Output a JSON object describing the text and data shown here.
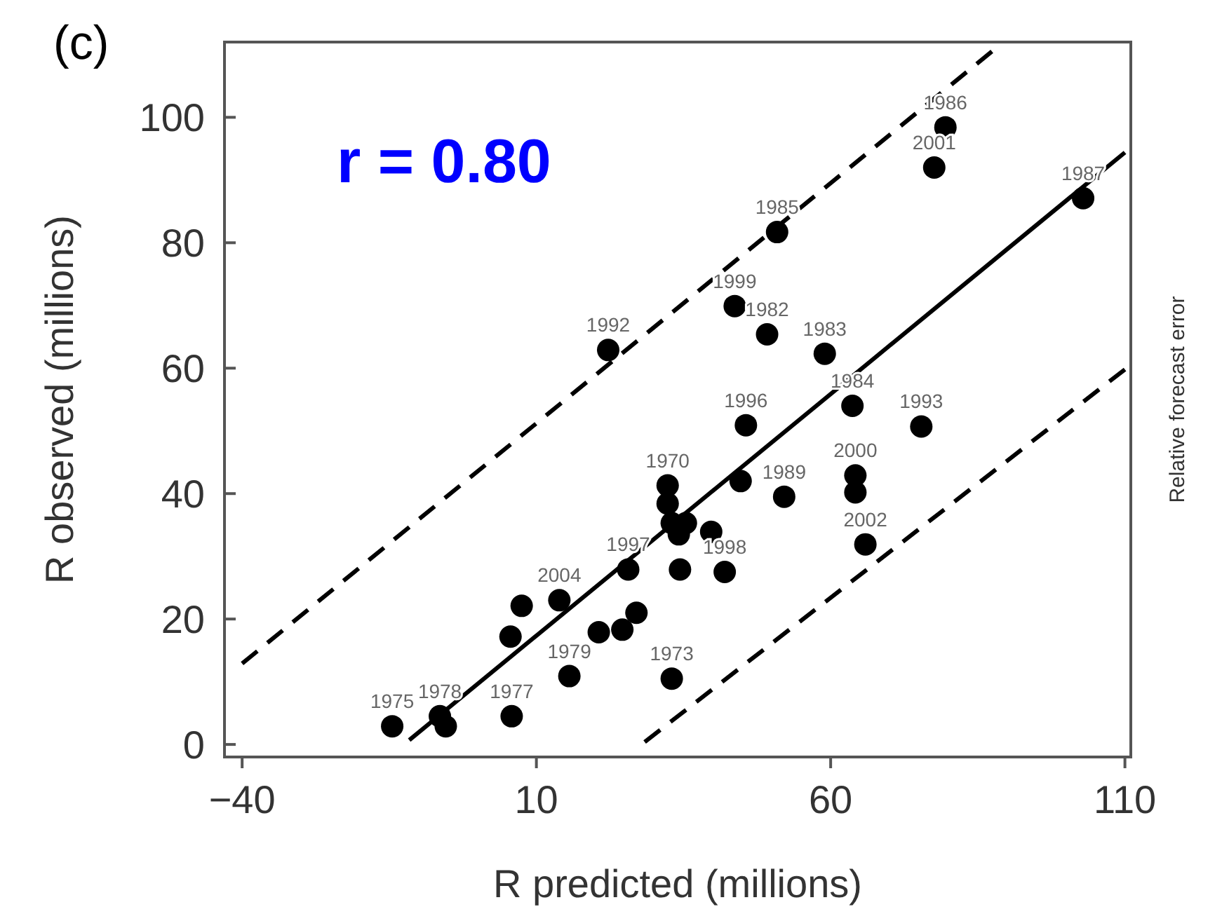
{
  "chart_data": {
    "type": "scatter",
    "title": "(c)",
    "xlabel": "R predicted (millions)",
    "ylabel": "R observed (millions)",
    "y2label": "Relative forecast error",
    "xlim": [
      -43,
      111
    ],
    "ylim": [
      -2,
      112
    ],
    "xticks": [
      -40,
      10,
      60,
      110
    ],
    "yticks": [
      0,
      20,
      40,
      60,
      80,
      100
    ],
    "grid": false,
    "marker": "circle",
    "series": [
      {
        "color": "#000000",
        "x": [
          -14.5,
          -6.4,
          -5.4,
          5.8,
          15.6,
          33.0,
          5.6,
          7.5,
          13.9,
          20.6,
          24.6,
          27.0,
          25.6,
          34.4,
          42.0,
          39.7,
          32.3,
          32.3,
          33.0,
          34.2,
          35.4,
          44.7,
          45.6,
          52.1,
          63.7,
          64.2,
          64.2,
          65.9,
          75.4,
          59.0,
          49.2,
          43.7,
          50.9,
          22.2,
          77.6,
          79.5,
          102.9
        ],
        "values": [
          2.9,
          4.5,
          2.9,
          4.5,
          10.9,
          10.5,
          17.2,
          22.1,
          23.0,
          17.9,
          18.3,
          21.0,
          27.9,
          27.9,
          27.5,
          33.9,
          41.3,
          38.4,
          35.3,
          33.5,
          35.3,
          42.0,
          50.9,
          39.5,
          54.0,
          42.9,
          40.2,
          31.9,
          50.7,
          62.3,
          65.4,
          69.9,
          81.7,
          62.9,
          92.0,
          98.4,
          87.1
        ]
      },
      {
        "type": "line",
        "color": "#000000",
        "line_style": "solid",
        "marker": "none",
        "x": [
          -11.6,
          110
        ],
        "values": [
          0.7,
          94.4
        ]
      },
      {
        "type": "line",
        "color": "#000000",
        "line_style": "dashed",
        "marker": "none",
        "x": [
          -40,
          87.4
        ],
        "values": [
          12.9,
          110.5
        ]
      },
      {
        "type": "line",
        "color": "#000000",
        "line_style": "dashed",
        "marker": "none",
        "x": [
          28.4,
          110
        ],
        "values": [
          0.4,
          59.8
        ]
      }
    ],
    "annotations": [
      "r = 0.80",
      {
        "text": "1975",
        "x": -14.5,
        "y": 2.9
      },
      {
        "text": "1978",
        "x": -6.4,
        "y": 4.5
      },
      {
        "text": "1977",
        "x": 5.8,
        "y": 4.5
      },
      {
        "text": "1979",
        "x": 15.6,
        "y": 10.9
      },
      {
        "text": "1973",
        "x": 33.0,
        "y": 10.5
      },
      {
        "text": "2004",
        "x": 13.9,
        "y": 23.0
      },
      {
        "text": "1997",
        "x": 25.6,
        "y": 27.9
      },
      {
        "text": "1998",
        "x": 42.0,
        "y": 27.5
      },
      {
        "text": "1970",
        "x": 32.3,
        "y": 41.3
      },
      {
        "text": "1996",
        "x": 45.6,
        "y": 50.9
      },
      {
        "text": "1989",
        "x": 52.1,
        "y": 39.5
      },
      {
        "text": "1984",
        "x": 63.7,
        "y": 54.0
      },
      {
        "text": "2000",
        "x": 64.2,
        "y": 42.9
      },
      {
        "text": "2002",
        "x": 65.9,
        "y": 31.9
      },
      {
        "text": "1993",
        "x": 75.4,
        "y": 50.7
      },
      {
        "text": "1983",
        "x": 59.0,
        "y": 62.3
      },
      {
        "text": "1982",
        "x": 49.2,
        "y": 65.4
      },
      {
        "text": "1999",
        "x": 43.7,
        "y": 69.9
      },
      {
        "text": "1985",
        "x": 50.9,
        "y": 81.7
      },
      {
        "text": "1992",
        "x": 22.2,
        "y": 62.9
      },
      {
        "text": "2001",
        "x": 77.6,
        "y": 92.0
      },
      {
        "text": "1986",
        "x": 79.5,
        "y": 98.4
      },
      {
        "text": "1987",
        "x": 102.9,
        "y": 87.1
      }
    ]
  }
}
